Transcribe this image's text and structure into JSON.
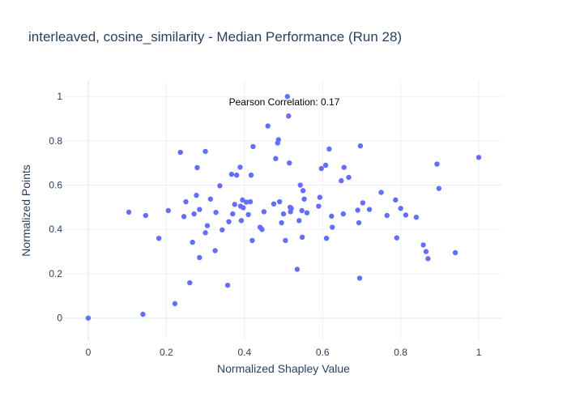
{
  "chart_data": {
    "type": "scatter",
    "title": "interleaved, cosine_similarity - Median Performance (Run 28)",
    "xlabel": "Normalized Shapley Value",
    "ylabel": "Normalized Points",
    "annotation": "Pearson Correlation: 0.17",
    "xlim": [
      -0.06,
      1.06
    ],
    "ylim": [
      -0.1,
      1.07
    ],
    "xticks": [
      0,
      0.2,
      0.4,
      0.6,
      0.8,
      1
    ],
    "xtick_labels": [
      "0",
      "0.2",
      "0.4",
      "0.6",
      "0.8",
      "1"
    ],
    "yticks": [
      0,
      0.2,
      0.4,
      0.6,
      0.8,
      1
    ],
    "ytick_labels": [
      "0",
      "0.2",
      "0.4",
      "0.6",
      "0.8",
      "1"
    ],
    "grid": true,
    "marker_color": "#636efa",
    "points": [
      [
        0.0,
        0.0
      ],
      [
        0.104,
        0.478
      ],
      [
        0.14,
        0.017
      ],
      [
        0.147,
        0.463
      ],
      [
        0.181,
        0.36
      ],
      [
        0.205,
        0.485
      ],
      [
        0.222,
        0.065
      ],
      [
        0.236,
        0.748
      ],
      [
        0.245,
        0.458
      ],
      [
        0.25,
        0.525
      ],
      [
        0.26,
        0.159
      ],
      [
        0.267,
        0.342
      ],
      [
        0.271,
        0.47
      ],
      [
        0.277,
        0.554
      ],
      [
        0.279,
        0.679
      ],
      [
        0.285,
        0.49
      ],
      [
        0.285,
        0.273
      ],
      [
        0.3,
        0.752
      ],
      [
        0.3,
        0.385
      ],
      [
        0.305,
        0.417
      ],
      [
        0.313,
        0.537
      ],
      [
        0.325,
        0.304
      ],
      [
        0.327,
        0.477
      ],
      [
        0.337,
        0.597
      ],
      [
        0.343,
        0.398
      ],
      [
        0.357,
        0.148
      ],
      [
        0.36,
        0.435
      ],
      [
        0.367,
        0.649
      ],
      [
        0.37,
        0.47
      ],
      [
        0.375,
        0.513
      ],
      [
        0.38,
        0.645
      ],
      [
        0.389,
        0.681
      ],
      [
        0.39,
        0.505
      ],
      [
        0.392,
        0.44
      ],
      [
        0.395,
        0.533
      ],
      [
        0.397,
        0.498
      ],
      [
        0.405,
        0.523
      ],
      [
        0.41,
        0.467
      ],
      [
        0.415,
        0.525
      ],
      [
        0.417,
        0.645
      ],
      [
        0.42,
        0.35
      ],
      [
        0.422,
        0.774
      ],
      [
        0.44,
        0.41
      ],
      [
        0.445,
        0.4
      ],
      [
        0.45,
        0.48
      ],
      [
        0.46,
        0.867
      ],
      [
        0.475,
        0.515
      ],
      [
        0.48,
        0.72
      ],
      [
        0.485,
        0.79
      ],
      [
        0.487,
        0.805
      ],
      [
        0.49,
        0.525
      ],
      [
        0.495,
        0.43
      ],
      [
        0.5,
        0.47
      ],
      [
        0.505,
        0.35
      ],
      [
        0.51,
        1.0
      ],
      [
        0.513,
        0.912
      ],
      [
        0.515,
        0.7
      ],
      [
        0.517,
        0.5
      ],
      [
        0.518,
        0.48
      ],
      [
        0.52,
        0.495
      ],
      [
        0.535,
        0.22
      ],
      [
        0.54,
        0.44
      ],
      [
        0.543,
        0.6
      ],
      [
        0.547,
        0.485
      ],
      [
        0.548,
        0.365
      ],
      [
        0.55,
        0.575
      ],
      [
        0.553,
        0.537
      ],
      [
        0.56,
        0.475
      ],
      [
        0.59,
        0.505
      ],
      [
        0.593,
        0.545
      ],
      [
        0.597,
        0.675
      ],
      [
        0.608,
        0.69
      ],
      [
        0.61,
        0.36
      ],
      [
        0.617,
        0.763
      ],
      [
        0.623,
        0.46
      ],
      [
        0.625,
        0.41
      ],
      [
        0.648,
        0.62
      ],
      [
        0.653,
        0.47
      ],
      [
        0.655,
        0.68
      ],
      [
        0.667,
        0.635
      ],
      [
        0.69,
        0.487
      ],
      [
        0.693,
        0.43
      ],
      [
        0.695,
        0.18
      ],
      [
        0.697,
        0.777
      ],
      [
        0.703,
        0.52
      ],
      [
        0.72,
        0.49
      ],
      [
        0.75,
        0.567
      ],
      [
        0.765,
        0.463
      ],
      [
        0.787,
        0.533
      ],
      [
        0.79,
        0.362
      ],
      [
        0.8,
        0.495
      ],
      [
        0.813,
        0.465
      ],
      [
        0.84,
        0.455
      ],
      [
        0.858,
        0.33
      ],
      [
        0.865,
        0.3
      ],
      [
        0.87,
        0.268
      ],
      [
        0.893,
        0.695
      ],
      [
        0.898,
        0.585
      ],
      [
        0.94,
        0.295
      ],
      [
        1.0,
        0.725
      ]
    ]
  }
}
